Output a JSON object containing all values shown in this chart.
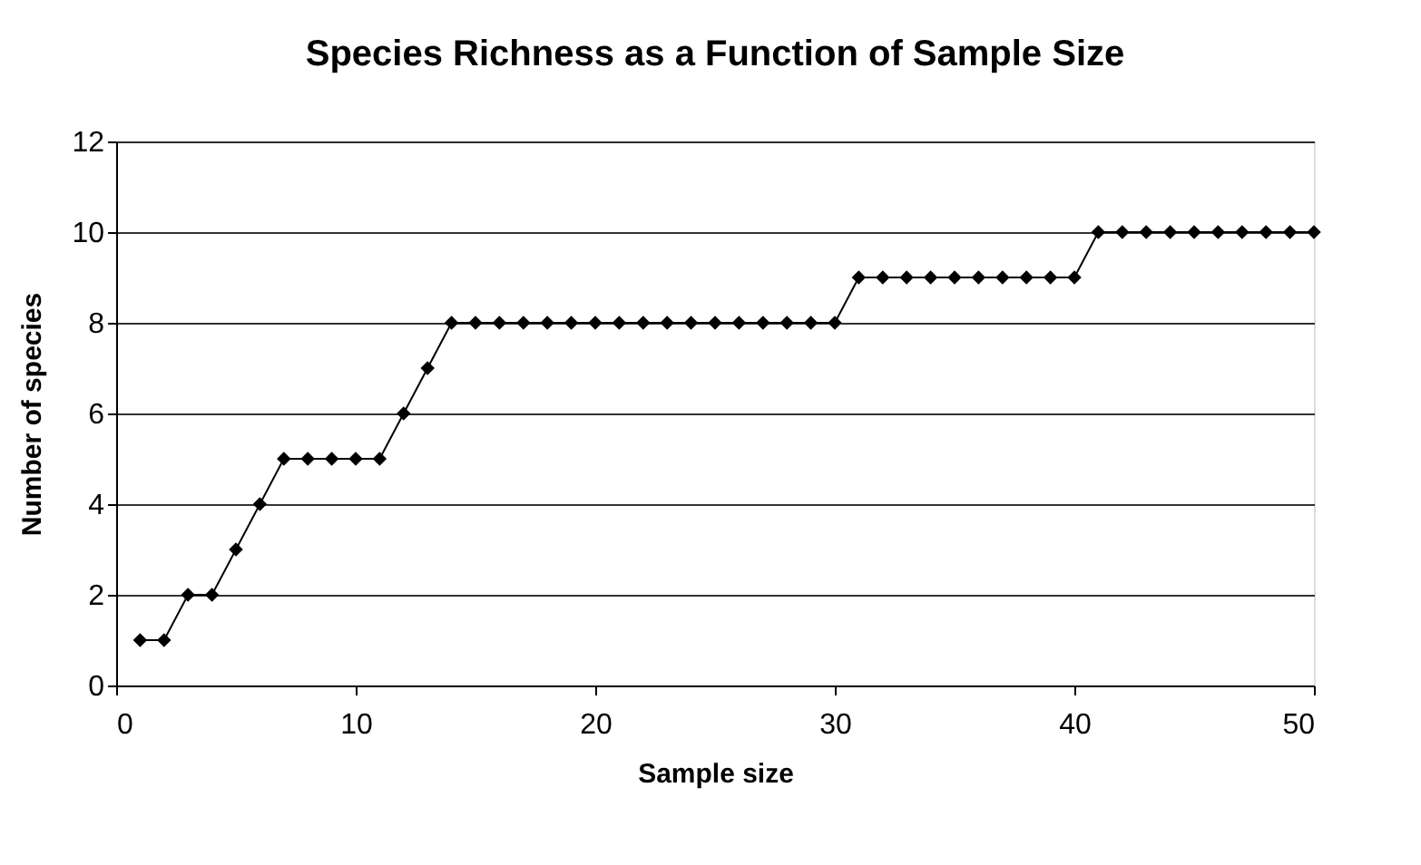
{
  "chart_data": {
    "type": "line",
    "title": "Species Richness as a Function of Sample Size",
    "xlabel": "Sample size",
    "ylabel": "Number of species",
    "x": [
      1,
      2,
      3,
      4,
      5,
      6,
      7,
      8,
      9,
      10,
      11,
      12,
      13,
      14,
      15,
      16,
      17,
      18,
      19,
      20,
      21,
      22,
      23,
      24,
      25,
      26,
      27,
      28,
      29,
      30,
      31,
      32,
      33,
      34,
      35,
      36,
      37,
      38,
      39,
      40,
      41,
      42,
      43,
      44,
      45,
      46,
      47,
      48,
      49,
      50
    ],
    "series": [
      {
        "color": "#000000",
        "values": [
          1,
          1,
          2,
          2,
          3,
          4,
          5,
          5,
          5,
          5,
          5,
          6,
          7,
          8,
          8,
          8,
          8,
          8,
          8,
          8,
          8,
          8,
          8,
          8,
          8,
          8,
          8,
          8,
          8,
          8,
          9,
          9,
          9,
          9,
          9,
          9,
          9,
          9,
          9,
          9,
          10,
          10,
          10,
          10,
          10,
          10,
          10,
          10,
          10,
          10
        ]
      }
    ],
    "xlim": [
      0,
      50
    ],
    "xticks": [
      0,
      10,
      20,
      30,
      40,
      50
    ],
    "ylim": [
      0,
      12
    ],
    "yticks": [
      0,
      2,
      4,
      6,
      8,
      10,
      12
    ],
    "grid": "y",
    "marker": "diamond",
    "line_style": "solid"
  }
}
